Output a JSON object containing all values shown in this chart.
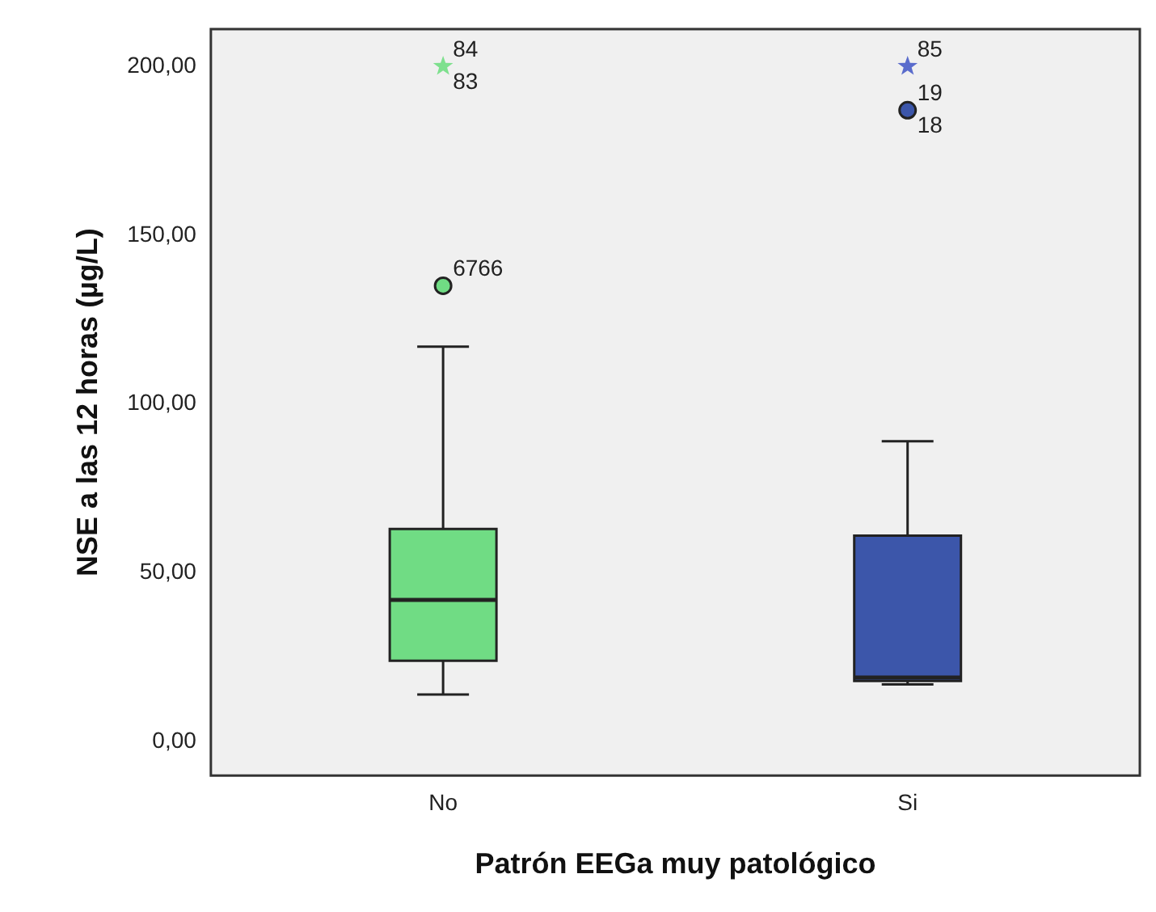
{
  "chart_data": {
    "type": "box",
    "categories": [
      "No",
      "Si"
    ],
    "xlabel": "Patrón EEGa muy patológico",
    "ylabel": "NSE a las 12 horas (µg/L)",
    "ylim": [
      -10,
      211
    ],
    "yticks": [
      {
        "value": 0,
        "label": "0,00"
      },
      {
        "value": 50,
        "label": "50,00"
      },
      {
        "value": 100,
        "label": "100,00"
      },
      {
        "value": 150,
        "label": "150,00"
      },
      {
        "value": 200,
        "label": "200,00"
      }
    ],
    "grid": false,
    "legend": false,
    "series": [
      {
        "colors": [
          "#70dc84",
          "#3c56aa"
        ],
        "boxes": [
          {
            "low": 14,
            "q1": 24,
            "median": 42,
            "q3": 63,
            "high": 117
          },
          {
            "low": 17,
            "q1": 18,
            "median": 19,
            "q3": 61,
            "high": 89
          }
        ]
      },
      {
        "type": "scatter",
        "marker": "circle",
        "x": [
          "No",
          "Si"
        ],
        "values": [
          135,
          187
        ],
        "colors": [
          "#70dc84",
          "#3c56aa"
        ]
      },
      {
        "type": "scatter",
        "marker": "star",
        "x": [
          "No",
          "Si"
        ],
        "values": [
          200,
          200
        ],
        "colors": [
          "#7ee08e",
          "#5a6ccc"
        ]
      }
    ],
    "annotations": [
      {
        "text": "84",
        "x": "No",
        "y": 200
      },
      {
        "text": "83",
        "x": "No",
        "y": 200
      },
      {
        "text": "6766",
        "x": "No",
        "y": 135
      },
      {
        "text": "85",
        "x": "Si",
        "y": 200
      },
      {
        "text": "19",
        "x": "Si",
        "y": 187
      },
      {
        "text": "18",
        "x": "Si",
        "y": 187
      }
    ]
  }
}
